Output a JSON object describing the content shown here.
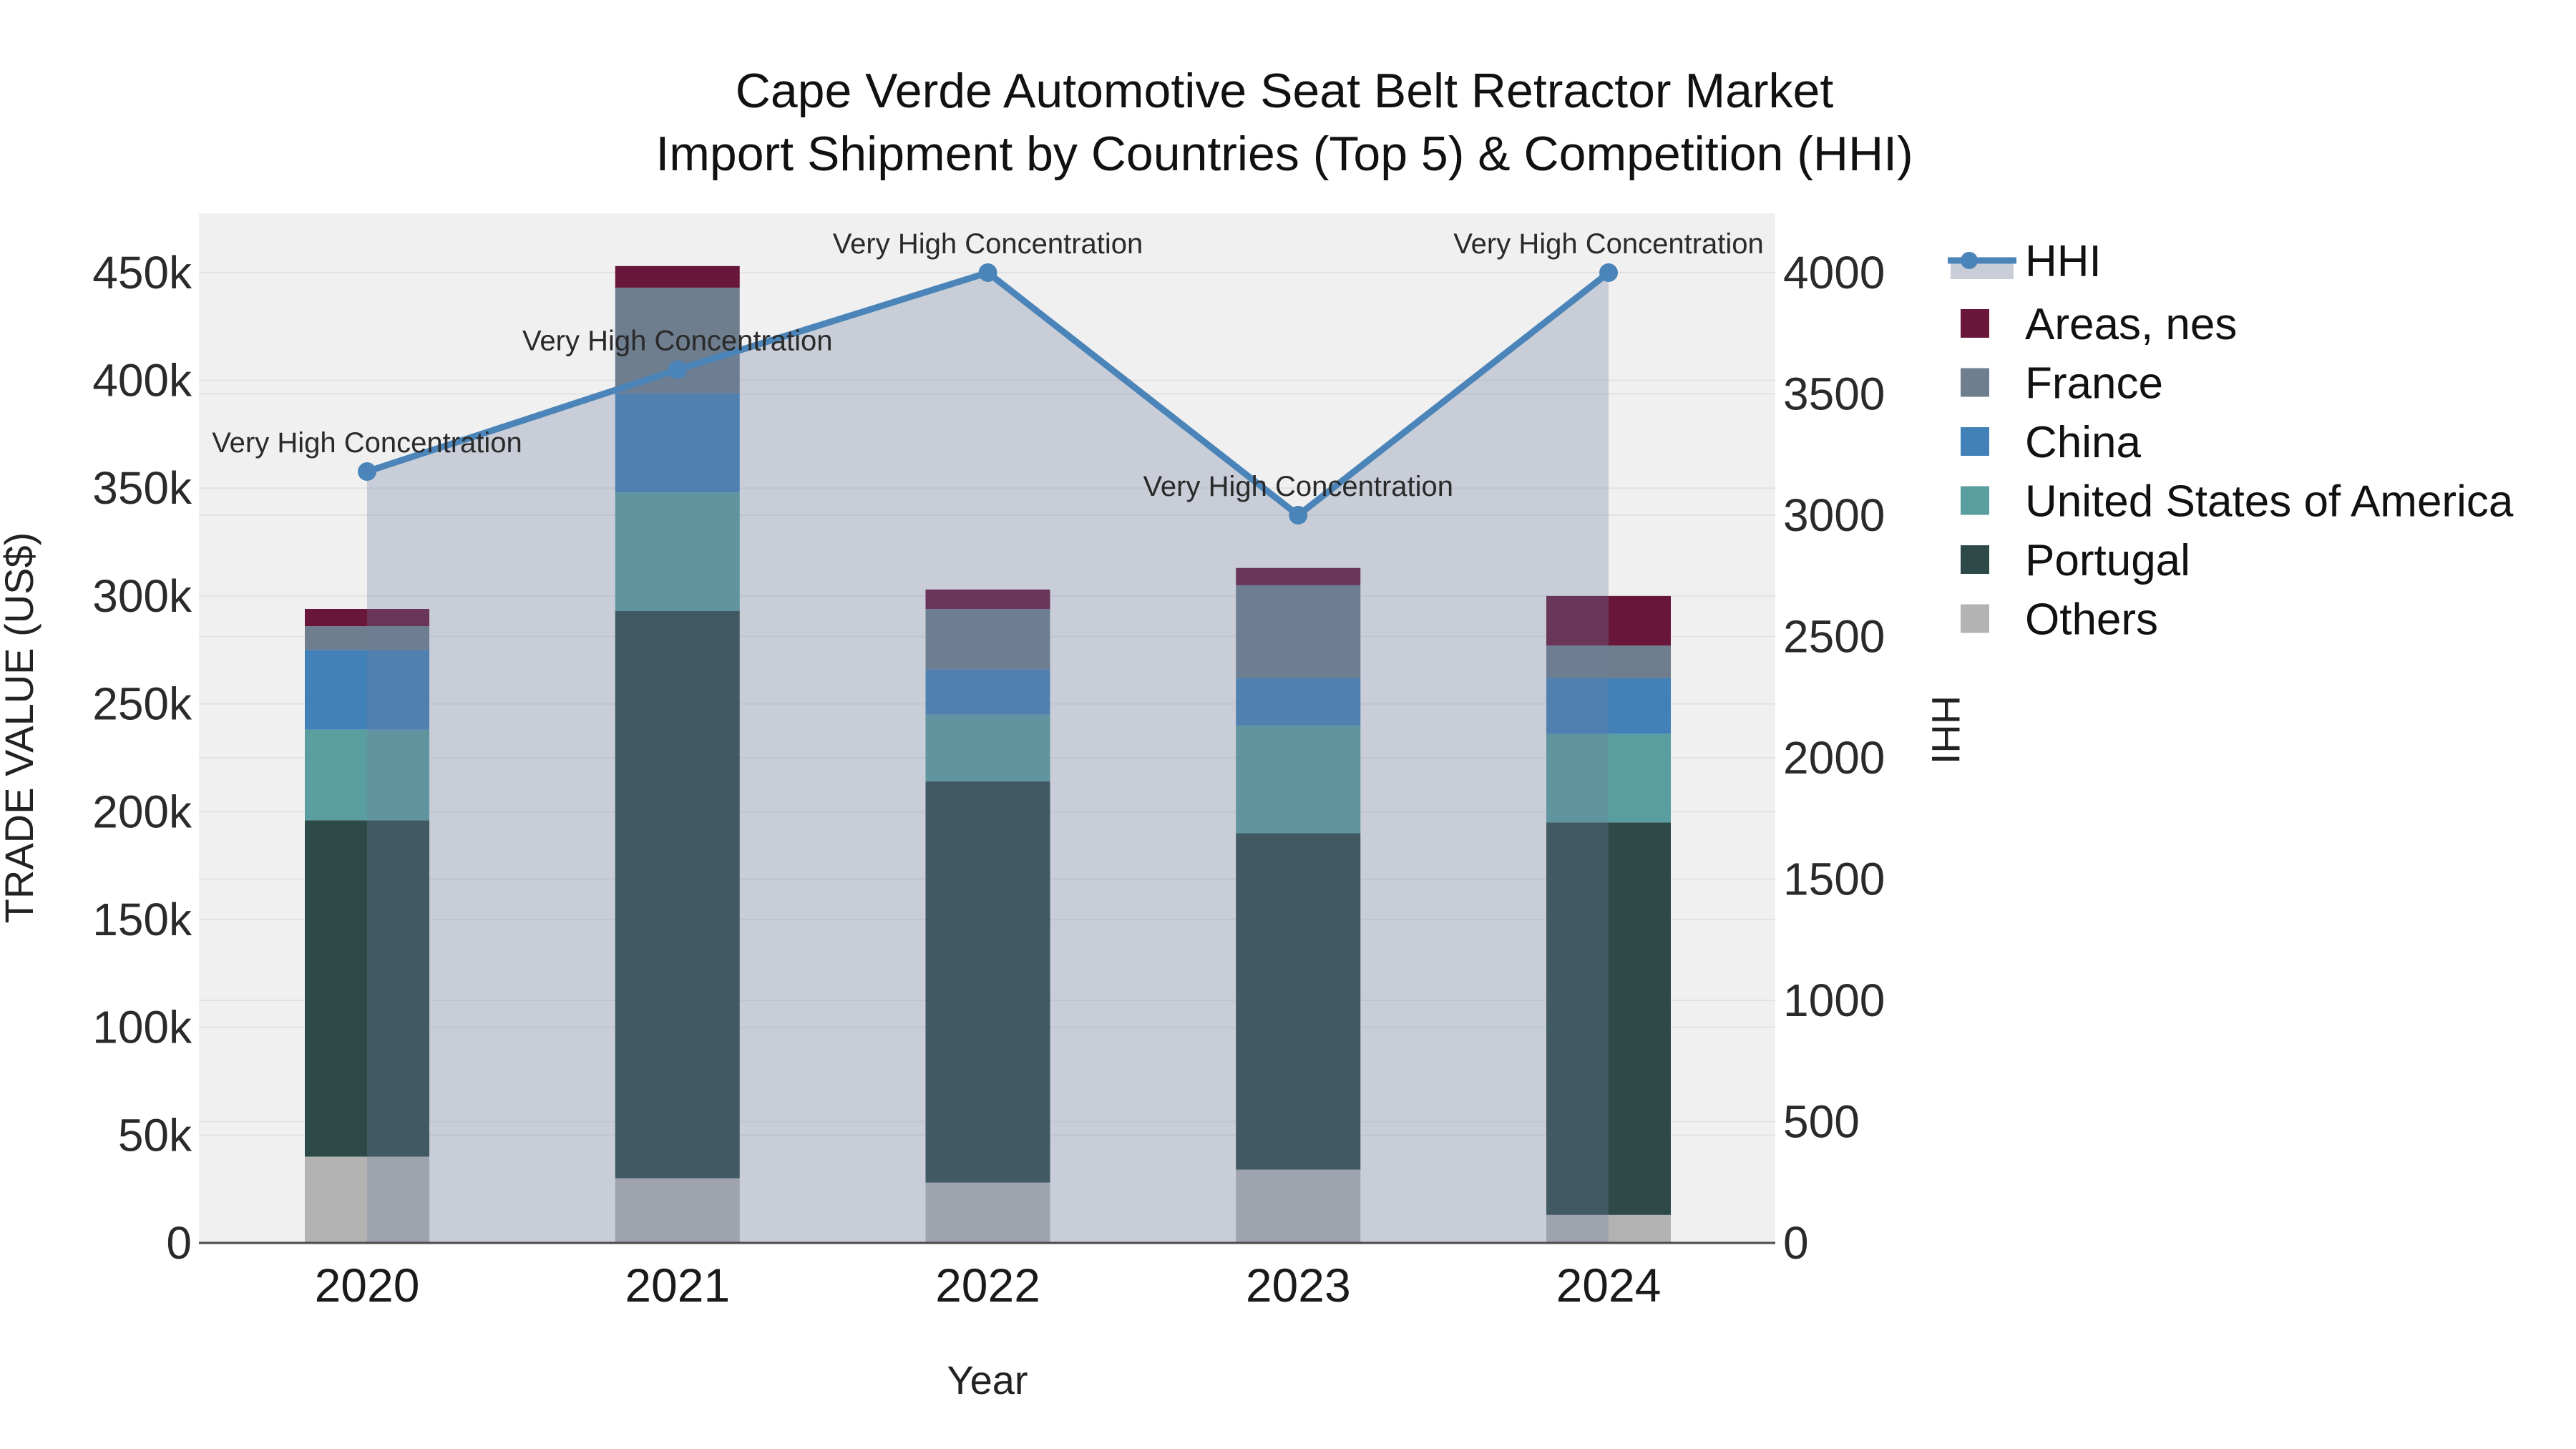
{
  "title": {
    "line1": "Cape Verde Automotive Seat Belt Retractor Market",
    "line2": "Import Shipment by Countries (Top 5) & Competition (HHI)"
  },
  "chart_data": {
    "type": "combo_stacked_bar_line",
    "categories": [
      "2020",
      "2021",
      "2022",
      "2023",
      "2024"
    ],
    "xlabel": "Year",
    "ylabel": "TRADE VALUE (US$)",
    "y2label": "HHI",
    "ylim": [
      0,
      477500
    ],
    "y2lim": [
      0,
      4245
    ],
    "grid": "on",
    "legend_position": "right",
    "ytick_values": [
      0,
      50000,
      100000,
      150000,
      200000,
      250000,
      300000,
      350000,
      400000,
      450000
    ],
    "ytick_labels": [
      "0",
      "50k",
      "100k",
      "150k",
      "200k",
      "250k",
      "300k",
      "350k",
      "400k",
      "450k"
    ],
    "y2tick_values": [
      0,
      500,
      1000,
      1500,
      2000,
      2500,
      3000,
      3500,
      4000
    ],
    "y2tick_labels": [
      "0",
      "500",
      "1000",
      "1500",
      "2000",
      "2500",
      "3000",
      "3500",
      "4000"
    ],
    "bar_series": [
      {
        "name": "Others",
        "color": "#b3b3b3",
        "values": [
          40000,
          30000,
          28000,
          34000,
          13000
        ]
      },
      {
        "name": "Portugal",
        "color": "#2d4a48",
        "values": [
          156000,
          263000,
          186000,
          156000,
          182000
        ]
      },
      {
        "name": "United States of America",
        "color": "#5b9e9f",
        "values": [
          42000,
          55000,
          31000,
          50000,
          41000
        ]
      },
      {
        "name": "China",
        "color": "#4281b8",
        "values": [
          37000,
          46000,
          21000,
          22000,
          26000
        ]
      },
      {
        "name": "France",
        "color": "#6e7e8e",
        "values": [
          11000,
          49000,
          28000,
          43000,
          15000
        ]
      },
      {
        "name": "Areas, nes",
        "color": "#68163a",
        "values": [
          8000,
          10000,
          9000,
          8000,
          23000
        ]
      }
    ],
    "bar_totals": [
      294000,
      453000,
      303000,
      313000,
      300000
    ],
    "line_series": {
      "name": "HHI",
      "color": "#4a84b8",
      "area_fill": "rgba(109,125,158,0.30)",
      "legend_band_color": "#c9cdd7",
      "values": [
        3180,
        3600,
        4000,
        3000,
        4000
      ]
    },
    "annotations": [
      {
        "category": "2020",
        "text": "Very High Concentration"
      },
      {
        "category": "2021",
        "text": "Very High Concentration"
      },
      {
        "category": "2022",
        "text": "Very High Concentration"
      },
      {
        "category": "2023",
        "text": "Very High Concentration"
      },
      {
        "category": "2024",
        "text": "Very High Concentration"
      }
    ],
    "legend_order": [
      "HHI",
      "Areas, nes",
      "France",
      "China",
      "United States of America",
      "Portugal",
      "Others"
    ]
  },
  "colors": {
    "plot_bg": "#f0f0f0",
    "gridline": "#e2e2e2",
    "axis_line": "#4a4a4a"
  }
}
